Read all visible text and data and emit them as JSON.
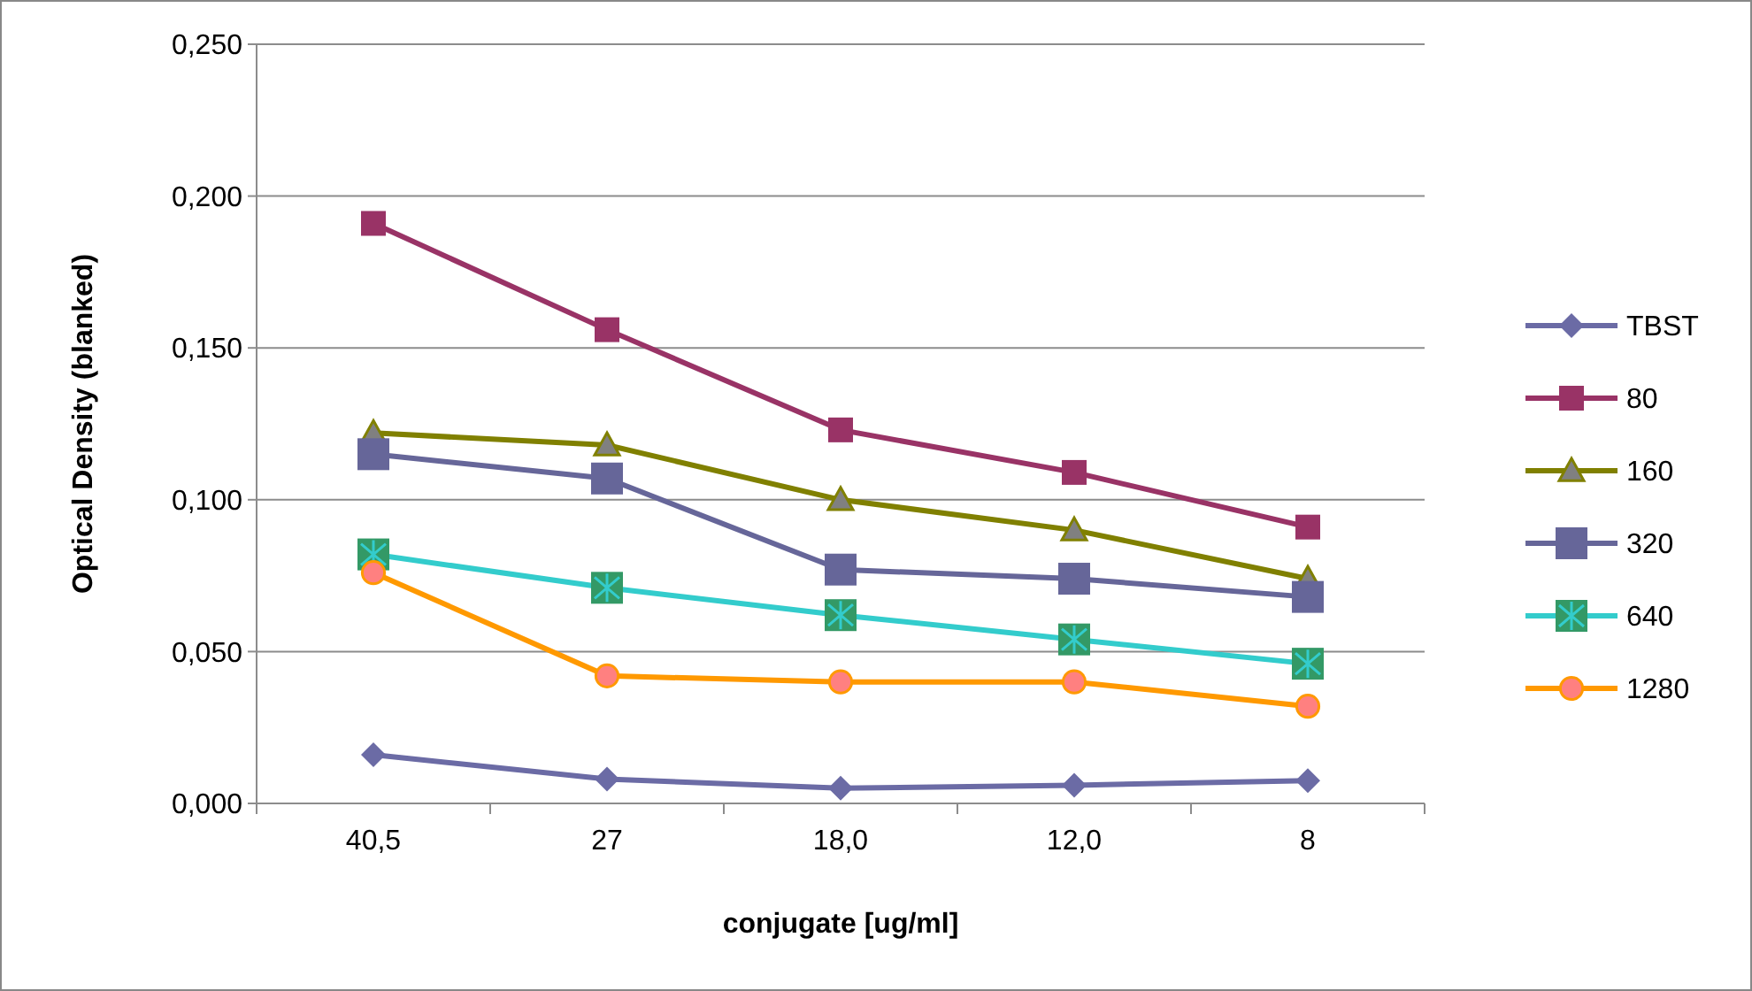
{
  "chart_data": {
    "type": "line",
    "xlabel": "conjugate [ug/ml]",
    "ylabel": "Optical Density (blanked)",
    "categories": [
      "40,5",
      "27",
      "18,0",
      "12,0",
      "8"
    ],
    "ylim": [
      0,
      0.25
    ],
    "yticks": [
      {
        "value": 0,
        "label": "0,000"
      },
      {
        "value": 0.05,
        "label": "0,050"
      },
      {
        "value": 0.1,
        "label": "0,100"
      },
      {
        "value": 0.15,
        "label": "0,150"
      },
      {
        "value": 0.2,
        "label": "0,200"
      },
      {
        "value": 0.25,
        "label": "0,250"
      }
    ],
    "grid": "y",
    "legend": "right",
    "line_style": "solid",
    "series": [
      {
        "name": "TBST",
        "color": "#6b6ba5",
        "marker": "diamond",
        "values": [
          0.016,
          0.008,
          0.005,
          0.006,
          0.0075
        ]
      },
      {
        "name": "80",
        "color": "#993366",
        "marker": "square",
        "values": [
          0.191,
          0.156,
          0.123,
          0.109,
          0.091
        ]
      },
      {
        "name": "160",
        "color": "#808000",
        "marker": "triangle",
        "values": [
          0.122,
          0.118,
          0.1,
          0.09,
          0.074
        ]
      },
      {
        "name": "320",
        "color": "#666699",
        "marker": "square",
        "values": [
          0.115,
          0.107,
          0.077,
          0.074,
          0.068
        ]
      },
      {
        "name": "640",
        "color": "#33cccc",
        "marker": "cross",
        "values": [
          0.082,
          0.071,
          0.062,
          0.054,
          0.046
        ]
      },
      {
        "name": "1280",
        "color": "#ff9900",
        "marker": "circle",
        "values": [
          0.076,
          0.042,
          0.04,
          0.04,
          0.032
        ]
      }
    ]
  }
}
